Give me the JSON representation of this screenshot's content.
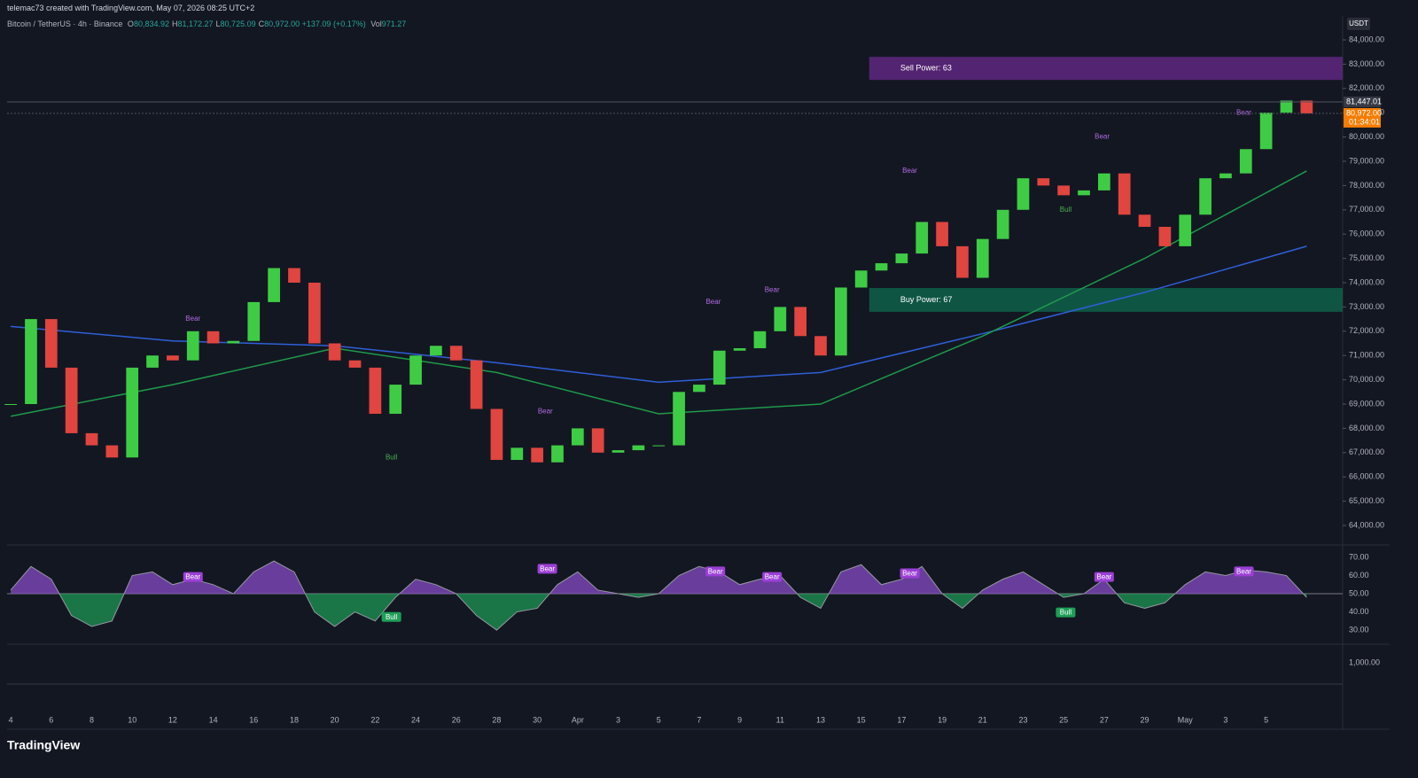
{
  "header": {
    "credit": "telemac73 created with TradingView.com, May 07, 2026 08:25 UTC+2",
    "symbol": "Bitcoin / TetherUS · 4h · Binance",
    "ohlc": [
      {
        "key": "O",
        "value": "80,834.92"
      },
      {
        "key": "H",
        "value": "81,172.27"
      },
      {
        "key": "L",
        "value": "80,725.09"
      },
      {
        "key": "C",
        "value": "80,972.00"
      }
    ],
    "change": "+137.09 (+0.17%)",
    "volume": {
      "key": "Vol",
      "value": "971.27"
    }
  },
  "brand": "TradingView",
  "chart_data": {
    "type": "candlestick",
    "currency": "USDT",
    "up_color": "#3fcc45",
    "down_color": "#e0453f",
    "x": [
      0,
      1,
      2,
      3,
      4,
      5,
      6,
      7,
      8,
      9,
      10,
      11,
      12,
      13,
      14,
      15,
      16,
      17,
      18,
      19,
      20,
      21,
      22,
      23,
      24,
      25,
      26,
      27,
      28,
      29,
      30,
      31,
      32,
      33,
      34,
      35,
      36,
      37,
      38,
      39,
      40,
      41,
      42,
      43,
      44,
      45,
      46,
      47,
      48,
      49,
      50,
      51,
      52,
      53,
      54,
      55,
      56,
      57,
      58,
      59,
      60,
      61,
      62,
      63,
      64
    ],
    "close": [
      69000,
      72500,
      70500,
      67800,
      67300,
      66800,
      70500,
      71000,
      70800,
      72000,
      71500,
      71600,
      73200,
      74600,
      74000,
      71500,
      70800,
      70500,
      68600,
      69800,
      71000,
      71400,
      70800,
      68800,
      66700,
      67200,
      66600,
      67300,
      68000,
      67000,
      67100,
      67300,
      67300,
      69500,
      69800,
      71200,
      71300,
      72000,
      73000,
      71800,
      71000,
      73800,
      74500,
      74800,
      75200,
      76500,
      75500,
      74200,
      75800,
      77000,
      78300,
      78000,
      77600,
      77800,
      78500,
      76800,
      76300,
      75500,
      76800,
      78300,
      78500,
      79500,
      81000,
      81500,
      80972
    ],
    "lines": [
      {
        "color": "#2f5fd8",
        "x": [
          0,
          8,
          16,
          24,
          32,
          40,
          48,
          56,
          64
        ],
        "values": [
          72200,
          71600,
          71400,
          70700,
          69900,
          70300,
          71900,
          73600,
          75500
        ]
      },
      {
        "color": "#1f9a4a",
        "x": [
          0,
          8,
          16,
          24,
          32,
          40,
          48,
          56,
          64
        ],
        "values": [
          68500,
          69800,
          71300,
          70300,
          68600,
          69000,
          71800,
          75000,
          78600
        ]
      }
    ],
    "xlim": [
      -0.18,
      65.78
    ],
    "xticks": [
      {
        "value": 0,
        "label": "4"
      },
      {
        "value": 2,
        "label": "6"
      },
      {
        "value": 4,
        "label": "8"
      },
      {
        "value": 6,
        "label": "10"
      },
      {
        "value": 8,
        "label": "12"
      },
      {
        "value": 10,
        "label": "14"
      },
      {
        "value": 12,
        "label": "16"
      },
      {
        "value": 14,
        "label": "18"
      },
      {
        "value": 16,
        "label": "20"
      },
      {
        "value": 18,
        "label": "22"
      },
      {
        "value": 20,
        "label": "24"
      },
      {
        "value": 22,
        "label": "26"
      },
      {
        "value": 24,
        "label": "28"
      },
      {
        "value": 26,
        "label": "30"
      },
      {
        "value": 28,
        "label": "Apr"
      },
      {
        "value": 30,
        "label": "3"
      },
      {
        "value": 32,
        "label": "5"
      },
      {
        "value": 34,
        "label": "7"
      },
      {
        "value": 36,
        "label": "9"
      },
      {
        "value": 38,
        "label": "11"
      },
      {
        "value": 40,
        "label": "13"
      },
      {
        "value": 42,
        "label": "15"
      },
      {
        "value": 44,
        "label": "17"
      },
      {
        "value": 46,
        "label": "19"
      },
      {
        "value": 48,
        "label": "21"
      },
      {
        "value": 50,
        "label": "23"
      },
      {
        "value": 52,
        "label": "25"
      },
      {
        "value": 54,
        "label": "27"
      },
      {
        "value": 56,
        "label": "29"
      },
      {
        "value": 58,
        "label": "May"
      },
      {
        "value": 60,
        "label": "3"
      },
      {
        "value": 62,
        "label": "5"
      }
    ],
    "ylim": [
      63307,
      84985
    ],
    "yticks": [
      {
        "value": 84000,
        "label": "84,000.00"
      },
      {
        "value": 83000,
        "label": "83,000.00"
      },
      {
        "value": 82000,
        "label": "82,000.00"
      },
      {
        "value": 81000,
        "label": "81,000.00"
      },
      {
        "value": 80000,
        "label": "80,000.00"
      },
      {
        "value": 79000,
        "label": "79,000.00"
      },
      {
        "value": 78000,
        "label": "78,000.00"
      },
      {
        "value": 77000,
        "label": "77,000.00"
      },
      {
        "value": 76000,
        "label": "76,000.00"
      },
      {
        "value": 75000,
        "label": "75,000.00"
      },
      {
        "value": 74000,
        "label": "74,000.00"
      },
      {
        "value": 73000,
        "label": "73,000.00"
      },
      {
        "value": 72000,
        "label": "72,000.00"
      },
      {
        "value": 71000,
        "label": "71,000.00"
      },
      {
        "value": 70000,
        "label": "70,000.00"
      },
      {
        "value": 69000,
        "label": "69,000.00"
      },
      {
        "value": 68000,
        "label": "68,000.00"
      },
      {
        "value": 67000,
        "label": "67,000.00"
      },
      {
        "value": 66000,
        "label": "66,000.00"
      },
      {
        "value": 65000,
        "label": "65,000.00"
      },
      {
        "value": 64000,
        "label": "64,000.00"
      }
    ],
    "price_labels": [
      {
        "value": 81447.01,
        "label": "81,447.01",
        "color": "#363a45"
      },
      {
        "value": 80972,
        "label": "80,972.00",
        "color": "#f57c00",
        "timer": "01:34:01"
      }
    ],
    "zones": [
      {
        "label": "Sell Power: 63",
        "x0": 42.4,
        "y0": 82350,
        "y1": 83300,
        "color": "#6a2a8c"
      },
      {
        "label": "Buy Power: 67",
        "x0": 42.4,
        "y0": 72800,
        "y1": 73780,
        "color": "#0f6b50"
      }
    ],
    "annotations": [
      {
        "text": "Bear",
        "x": 9,
        "y": 72500
      },
      {
        "text": "Bear",
        "x": 26.4,
        "y": 68700
      },
      {
        "text": "Bear",
        "x": 34.7,
        "y": 73200
      },
      {
        "text": "Bear",
        "x": 37.6,
        "y": 73700
      },
      {
        "text": "Bear",
        "x": 44.4,
        "y": 78600
      },
      {
        "text": "Bear",
        "x": 53.9,
        "y": 80000
      },
      {
        "text": "Bear",
        "x": 60.9,
        "y": 81000
      },
      {
        "text": "Bull",
        "x": 18.8,
        "y": 66800
      },
      {
        "text": "Bull",
        "x": 52.1,
        "y": 77000
      }
    ],
    "rsi": {
      "values": [
        52,
        65,
        58,
        38,
        32,
        35,
        60,
        62,
        55,
        58,
        55,
        50,
        62,
        68,
        62,
        40,
        32,
        40,
        35,
        48,
        58,
        55,
        50,
        38,
        30,
        40,
        42,
        55,
        62,
        52,
        50,
        48,
        50,
        60,
        65,
        62,
        55,
        58,
        60,
        48,
        42,
        62,
        66,
        55,
        58,
        65,
        50,
        42,
        52,
        58,
        62,
        55,
        48,
        50,
        58,
        45,
        42,
        45,
        55,
        62,
        60,
        63,
        62,
        60,
        48
      ],
      "mid": 50,
      "ylim": [
        23.2,
        74.4
      ],
      "yticks": [
        {
          "value": 70,
          "label": "70.00"
        },
        {
          "value": 60,
          "label": "60.00"
        },
        {
          "value": 50,
          "label": "50.00"
        },
        {
          "value": 40,
          "label": "40.00"
        },
        {
          "value": 30,
          "label": "30.00"
        }
      ],
      "annotations": [
        {
          "text": "Bear",
          "x": 9,
          "y": 59
        },
        {
          "text": "Bear",
          "x": 26.5,
          "y": 63.5
        },
        {
          "text": "Bear",
          "x": 34.8,
          "y": 62
        },
        {
          "text": "Bear",
          "x": 37.6,
          "y": 59
        },
        {
          "text": "Bear",
          "x": 44.4,
          "y": 61
        },
        {
          "text": "Bear",
          "x": 54,
          "y": 59
        },
        {
          "text": "Bear",
          "x": 60.9,
          "y": 62
        },
        {
          "text": "Bull",
          "x": 18.8,
          "y": 37
        },
        {
          "text": "Bull",
          "x": 52.1,
          "y": 39.5
        }
      ]
    },
    "macd": {
      "ylim": [
        -2000,
        1750
      ],
      "yticks": [
        {
          "value": 1000,
          "label": "1,000.00"
        }
      ]
    }
  }
}
